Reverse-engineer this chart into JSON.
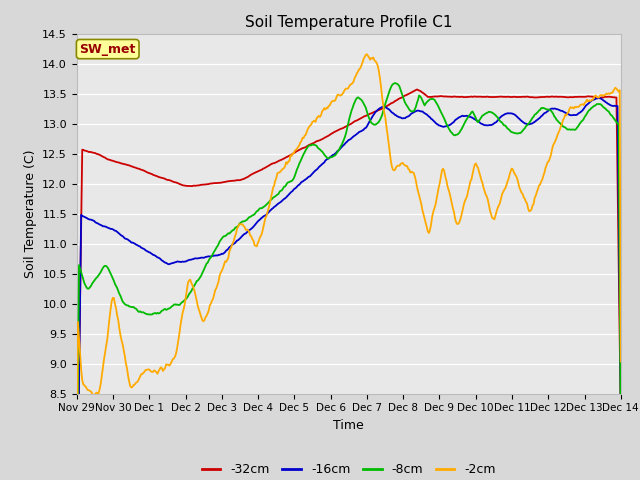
{
  "title": "Soil Temperature Profile C1",
  "xlabel": "Time",
  "ylabel": "Soil Temperature (C)",
  "ylim": [
    8.5,
    14.5
  ],
  "yticks": [
    8.5,
    9.0,
    9.5,
    10.0,
    10.5,
    11.0,
    11.5,
    12.0,
    12.5,
    13.0,
    13.5,
    14.0,
    14.5
  ],
  "background_color": "#d8d8d8",
  "plot_bg_color": "#e8e8e8",
  "legend_label": "SW_met",
  "legend_bg": "#ffff99",
  "legend_border": "#888800",
  "series_colors": [
    "#cc0000",
    "#0000cc",
    "#00bb00",
    "#ffaa00"
  ],
  "series_labels": [
    "-32cm",
    "-16cm",
    "-8cm",
    "-2cm"
  ],
  "x_tick_labels": [
    "Nov 29",
    "Nov 30",
    "Dec 1",
    "Dec 2",
    "Dec 3",
    "Dec 4",
    "Dec 5",
    "Dec 6",
    "Dec 7",
    "Dec 8",
    "Dec 9",
    "Dec 10",
    "Dec 11",
    "Dec 12",
    "Dec 13",
    "Dec 14"
  ],
  "n_points": 500
}
